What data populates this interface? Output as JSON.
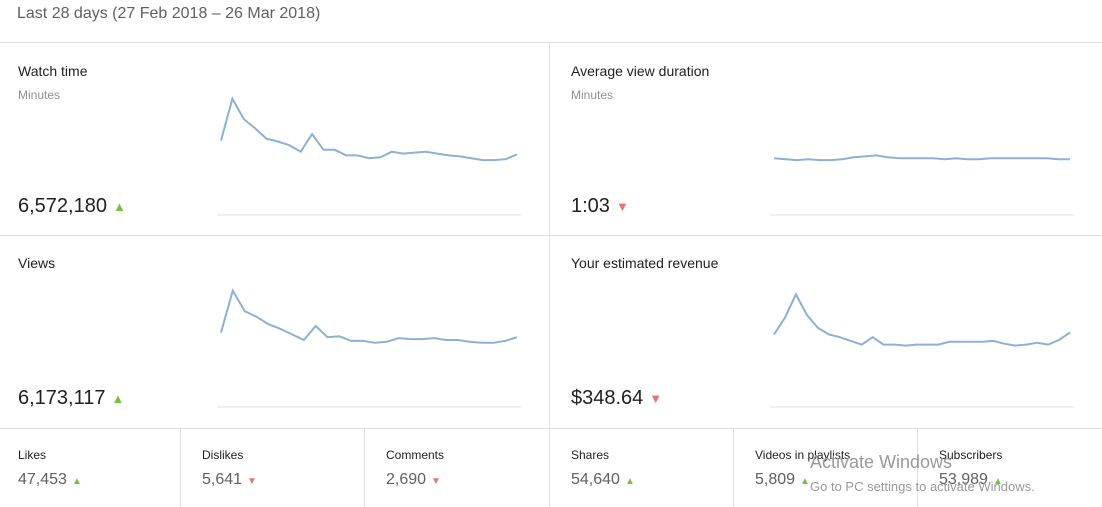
{
  "header": {
    "date_range": "Last 28 days (27 Feb 2018 – 26 Mar 2018)"
  },
  "cards": {
    "watch_time": {
      "title": "Watch time",
      "unit": "Minutes",
      "value": "6,572,180",
      "trend": "up",
      "series": [
        80,
        125,
        103,
        93,
        82,
        79,
        75,
        68,
        87,
        70,
        70,
        64,
        64,
        61,
        62,
        68,
        66,
        67,
        68,
        66,
        64,
        63,
        61,
        59,
        59,
        60,
        65
      ]
    },
    "avg_view_duration": {
      "title": "Average view duration",
      "unit": "Minutes",
      "value": "1:03",
      "trend": "down",
      "series": [
        61,
        60,
        59,
        60,
        59,
        59,
        60,
        62,
        63,
        64,
        62,
        61,
        61,
        61,
        61,
        60,
        61,
        60,
        60,
        61,
        61,
        61,
        61,
        61,
        61,
        60,
        60
      ]
    },
    "views": {
      "title": "Views",
      "value": "6,173,117",
      "trend": "up",
      "series": [
        80,
        125,
        103,
        97,
        89,
        84,
        78,
        72,
        87,
        75,
        76,
        71,
        71,
        69,
        70,
        74,
        73,
        73,
        74,
        72,
        72,
        70,
        69,
        69,
        71,
        75
      ]
    },
    "revenue": {
      "title": "Your estimated revenue",
      "value": "$348.64",
      "trend": "down",
      "series": [
        78,
        96,
        121,
        99,
        85,
        78,
        75,
        71,
        67,
        75,
        67,
        67,
        66,
        67,
        67,
        67,
        70,
        70,
        70,
        70,
        71,
        68,
        66,
        67,
        69,
        67,
        72,
        80
      ]
    }
  },
  "stats": [
    {
      "label": "Likes",
      "value": "47,453",
      "trend": "up"
    },
    {
      "label": "Dislikes",
      "value": "5,641",
      "trend": "down"
    },
    {
      "label": "Comments",
      "value": "2,690",
      "trend": "down"
    },
    {
      "label": "Shares",
      "value": "54,640",
      "trend": "up"
    },
    {
      "label": "Videos in playlists",
      "value": "5,809",
      "trend": "up"
    },
    {
      "label": "Subscribers",
      "value": "53,989",
      "trend": "up"
    }
  ],
  "watermark": {
    "line1": "Activate Windows",
    "line2": "Go to PC settings to activate Windows."
  },
  "colors": {
    "line": "#8fb0d3",
    "up": "#7ac143",
    "down": "#e57373"
  },
  "icons": {
    "up": "▲",
    "down": "▼"
  }
}
